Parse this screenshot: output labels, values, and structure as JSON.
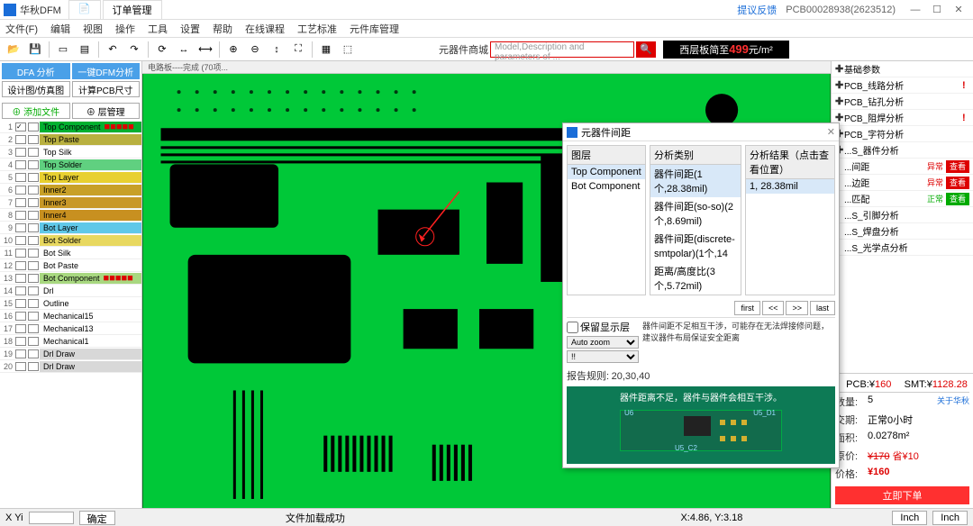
{
  "title": {
    "app": "华秋DFM",
    "tab1": "",
    "tab2": "订单管理"
  },
  "titlebar_link": "提议反馈",
  "pcbid": "PCB00028938(2623512)",
  "menu": [
    "文件(F)",
    "编辑",
    "视图",
    "操作",
    "工具",
    "设置",
    "帮助",
    "在线课程",
    "工艺标准",
    "元件库管理"
  ],
  "search": {
    "label": "元器件商城",
    "placeholder": "Model,Description and parameters of ..."
  },
  "banner": {
    "pre": "西层板简至",
    "price": "499",
    "unit": "元/m²"
  },
  "left": {
    "btn_dfa": "DFA 分析",
    "btn_onekey": "一键DFM分析",
    "btn_sim": "设计图/仿真图",
    "btn_size": "计算PCB尺寸",
    "btn_addfile": "⊕ 添加文件",
    "btn_layermgr": "⊕ 层管理"
  },
  "layers": [
    {
      "n": 1,
      "name": "Top Component",
      "bg": "#00b030",
      "chk": true,
      "mark": "■■■■■"
    },
    {
      "n": 2,
      "name": "Top Paste",
      "bg": "#b8b040"
    },
    {
      "n": 3,
      "name": "Top Silk",
      "bg": "#ffffff"
    },
    {
      "n": 4,
      "name": "Top Solder",
      "bg": "#60d080"
    },
    {
      "n": 5,
      "name": "Top Layer",
      "bg": "#e8d030"
    },
    {
      "n": 6,
      "name": "Inner2",
      "bg": "#c8a028"
    },
    {
      "n": 7,
      "name": "Inner3",
      "bg": "#c89828"
    },
    {
      "n": 8,
      "name": "Inner4",
      "bg": "#c89020"
    },
    {
      "n": 9,
      "name": "Bot Layer",
      "bg": "#60c8e8"
    },
    {
      "n": 10,
      "name": "Bot Solder",
      "bg": "#e8d860"
    },
    {
      "n": 11,
      "name": "Bot Silk",
      "bg": "#ffffff"
    },
    {
      "n": 12,
      "name": "Bot Paste",
      "bg": "#ffffff"
    },
    {
      "n": 13,
      "name": "Bot Component",
      "bg": "#a8d880",
      "mark": "■■■■■"
    },
    {
      "n": 14,
      "name": "Drl",
      "bg": "#ffffff"
    },
    {
      "n": 15,
      "name": "Outline",
      "bg": "#ffffff"
    },
    {
      "n": 16,
      "name": "Mechanical15",
      "bg": "#ffffff"
    },
    {
      "n": 17,
      "name": "Mechanical13",
      "bg": "#ffffff"
    },
    {
      "n": 18,
      "name": "Mechanical1",
      "bg": "#ffffff"
    },
    {
      "n": 19,
      "name": "Drl Draw",
      "bg": "#d8d8d8"
    },
    {
      "n": 20,
      "name": "Drl Draw",
      "bg": "#d8d8d8"
    }
  ],
  "canvas_header": "电路板----完成  (70项...",
  "right_items": [
    {
      "txt": "基础参数",
      "plus": true
    },
    {
      "txt": "PCB_线路分析",
      "plus": true,
      "bang": true
    },
    {
      "txt": "PCB_钻孔分析",
      "plus": true
    },
    {
      "txt": "PCB_阻焊分析",
      "plus": true,
      "bang": true
    },
    {
      "txt": "PCB_字符分析",
      "plus": true
    },
    {
      "txt": "S_器件分析",
      "plus": true,
      "cut": true
    },
    {
      "txt": "间距",
      "status": "异常",
      "err": true,
      "btn": true,
      "cut": true
    },
    {
      "txt": "边距",
      "status": "异常",
      "err": true,
      "btn": true,
      "cut": true
    },
    {
      "txt": "匹配",
      "status": "正常",
      "ok": true,
      "btn": true,
      "cut": true
    },
    {
      "txt": "S_引脚分析",
      "cut": true
    },
    {
      "txt": "S_焊盘分析",
      "cut": true
    },
    {
      "txt": "S_光学点分析",
      "cut": true
    }
  ],
  "quote": {
    "pcb_label": "PCB:¥",
    "pcb_val": "160",
    "smt_label": "SMT:¥",
    "smt_val": "1128.28",
    "qty_k": "数量:",
    "qty_v": "5",
    "about": "关于华秋",
    "deliv_k": "交期:",
    "deliv_v": "正常0小时",
    "area_k": "面积:",
    "area_v": "0.0278m²",
    "orig_k": "原价:",
    "orig_v": "¥170",
    "orig_off": "省¥10",
    "price_k": "价格:",
    "price_v": "¥160",
    "order": "立即下单"
  },
  "status": {
    "xy": "X Yi",
    "ok": "确定",
    "center": "文件加载成功",
    "coord": "X:4.86, Y:3.18",
    "unit1": "Inch",
    "unit2": "Inch"
  },
  "popup": {
    "title": "元器件间距",
    "col1_h": "图层",
    "col1_r1": "Top Component",
    "col1_r2": "Bot Component",
    "col2_h": "分析类别",
    "col2_r1": "器件间距(1个,28.38mil)",
    "col2_r2": "器件间距(so-so)(2个,8.69mil)",
    "col2_r3": "器件间距(discrete-smtpolar)(1个,14",
    "col2_r4": "距离/高度比(3个,5.72mil)",
    "col3_h": "分析结果（点击查看位置）",
    "col3_r1": "1,  28.38mil",
    "nav_first": "first",
    "nav_prev": "<<",
    "nav_next": ">>",
    "nav_last": "last",
    "keep": "保留显示层",
    "zoom": "Auto zoom",
    "sel": "!!",
    "note": "器件间距不足相互干涉，可能存在无法焊接修问题，建议器件布局保证安全距离",
    "rule_k": "报告规则:",
    "rule_v": "20,30,40",
    "caption": "器件距离不足，器件与器件会相互干涉。",
    "labels": {
      "u6": "U6",
      "u5d1": "U5_D1",
      "u5c2": "U5_C2"
    }
  }
}
